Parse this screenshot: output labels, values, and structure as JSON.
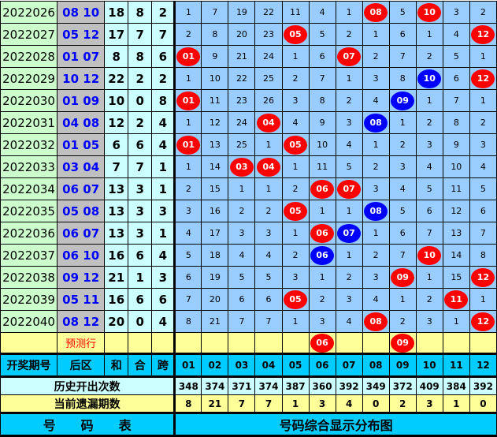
{
  "colors": {
    "red_ball": "#ff0000",
    "blue_ball": "#0000ff",
    "grid": "#99ccff",
    "header": "#00ccff"
  },
  "rows": [
    {
      "period": "2022026",
      "back": "08  10",
      "sum": "18",
      "he": "8",
      "span": "2",
      "cells": [
        "1",
        "7",
        "19",
        "22",
        "11",
        "4",
        "1",
        {
          "n": "08",
          "c": "red"
        },
        "5",
        {
          "n": "10",
          "c": "red"
        },
        "3",
        "2"
      ]
    },
    {
      "period": "2022027",
      "back": "05  12",
      "sum": "17",
      "he": "7",
      "span": "7",
      "cells": [
        "2",
        "8",
        "20",
        "23",
        {
          "n": "05",
          "c": "red"
        },
        "5",
        "2",
        "1",
        "6",
        "1",
        "4",
        {
          "n": "12",
          "c": "red"
        }
      ]
    },
    {
      "period": "2022028",
      "back": "01  07",
      "sum": "8",
      "he": "8",
      "span": "6",
      "cells": [
        {
          "n": "01",
          "c": "red"
        },
        "9",
        "21",
        "24",
        "1",
        "6",
        {
          "n": "07",
          "c": "red"
        },
        "2",
        "7",
        "2",
        "5",
        "1"
      ]
    },
    {
      "period": "2022029",
      "back": "10  12",
      "sum": "22",
      "he": "2",
      "span": "2",
      "cells": [
        "1",
        "10",
        "22",
        "25",
        "2",
        "7",
        "1",
        "3",
        "8",
        {
          "n": "10",
          "c": "blue"
        },
        "6",
        {
          "n": "12",
          "c": "red"
        }
      ]
    },
    {
      "period": "2022030",
      "back": "01  09",
      "sum": "10",
      "he": "0",
      "span": "8",
      "cells": [
        {
          "n": "01",
          "c": "red"
        },
        "11",
        "23",
        "26",
        "3",
        "8",
        "2",
        "4",
        {
          "n": "09",
          "c": "blue"
        },
        "1",
        "7",
        "1"
      ]
    },
    {
      "period": "2022031",
      "back": "04  08",
      "sum": "12",
      "he": "2",
      "span": "4",
      "cells": [
        "1",
        "12",
        "24",
        {
          "n": "04",
          "c": "red"
        },
        "4",
        "9",
        "3",
        {
          "n": "08",
          "c": "blue"
        },
        "1",
        "2",
        "8",
        "2"
      ]
    },
    {
      "period": "2022032",
      "back": "01  05",
      "sum": "6",
      "he": "6",
      "span": "4",
      "cells": [
        {
          "n": "01",
          "c": "red"
        },
        "13",
        "25",
        "1",
        {
          "n": "05",
          "c": "red"
        },
        "10",
        "4",
        "1",
        "2",
        "3",
        "9",
        "3"
      ]
    },
    {
      "period": "2022033",
      "back": "03  04",
      "sum": "7",
      "he": "7",
      "span": "1",
      "cells": [
        "1",
        "14",
        {
          "n": "03",
          "c": "red"
        },
        {
          "n": "04",
          "c": "red"
        },
        "1",
        "11",
        "5",
        "2",
        "3",
        "4",
        "10",
        "4"
      ]
    },
    {
      "period": "2022034",
      "back": "06  07",
      "sum": "13",
      "he": "3",
      "span": "1",
      "cells": [
        "2",
        "15",
        "1",
        "1",
        "2",
        {
          "n": "06",
          "c": "red"
        },
        {
          "n": "07",
          "c": "red"
        },
        "3",
        "4",
        "5",
        "11",
        "5"
      ]
    },
    {
      "period": "2022035",
      "back": "05  08",
      "sum": "13",
      "he": "3",
      "span": "3",
      "cells": [
        "3",
        "16",
        "2",
        "2",
        {
          "n": "05",
          "c": "red"
        },
        "1",
        "1",
        {
          "n": "08",
          "c": "blue"
        },
        "5",
        "6",
        "12",
        "6"
      ]
    },
    {
      "period": "2022036",
      "back": "06  07",
      "sum": "13",
      "he": "3",
      "span": "1",
      "cells": [
        "4",
        "17",
        "3",
        "3",
        "1",
        {
          "n": "06",
          "c": "red"
        },
        {
          "n": "07",
          "c": "blue"
        },
        "1",
        "6",
        "7",
        "13",
        "7"
      ]
    },
    {
      "period": "2022037",
      "back": "06  10",
      "sum": "16",
      "he": "6",
      "span": "4",
      "cells": [
        "5",
        "18",
        "4",
        "4",
        "2",
        {
          "n": "06",
          "c": "blue"
        },
        "1",
        "2",
        "7",
        {
          "n": "10",
          "c": "red"
        },
        "14",
        "8"
      ]
    },
    {
      "period": "2022038",
      "back": "09  12",
      "sum": "21",
      "he": "1",
      "span": "3",
      "cells": [
        "6",
        "19",
        "5",
        "5",
        "3",
        "1",
        "2",
        "3",
        {
          "n": "09",
          "c": "red"
        },
        "1",
        "15",
        {
          "n": "12",
          "c": "red"
        }
      ]
    },
    {
      "period": "2022039",
      "back": "05  11",
      "sum": "16",
      "he": "6",
      "span": "6",
      "cells": [
        "7",
        "20",
        "6",
        "6",
        {
          "n": "05",
          "c": "red"
        },
        "2",
        "3",
        "4",
        "1",
        "2",
        {
          "n": "11",
          "c": "red"
        },
        "1"
      ]
    },
    {
      "period": "2022040",
      "back": "08  12",
      "sum": "20",
      "he": "0",
      "span": "4",
      "cells": [
        "8",
        "21",
        "7",
        "7",
        "1",
        "3",
        "4",
        {
          "n": "08",
          "c": "red"
        },
        "2",
        "3",
        "1",
        {
          "n": "12",
          "c": "red"
        }
      ]
    }
  ],
  "prediction": {
    "label": "预测行",
    "cells": [
      "",
      "",
      "",
      "",
      "",
      {
        "n": "06",
        "c": "red"
      },
      "",
      "",
      {
        "n": "09",
        "c": "red"
      },
      "",
      "",
      ""
    ]
  },
  "header": {
    "period": "开奖期号",
    "back": "后区",
    "sum": "和",
    "he": "合",
    "span": "跨",
    "numbers": [
      "01",
      "02",
      "03",
      "04",
      "05",
      "06",
      "07",
      "08",
      "09",
      "10",
      "11",
      "12"
    ]
  },
  "history": {
    "label": "历史开出次数",
    "values": [
      "348",
      "374",
      "371",
      "374",
      "387",
      "360",
      "392",
      "349",
      "372",
      "409",
      "384",
      "392"
    ]
  },
  "current": {
    "label": "当前遗漏期数",
    "values": [
      "8",
      "21",
      "7",
      "7",
      "1",
      "3",
      "4",
      "0",
      "2",
      "3",
      "1",
      "0"
    ]
  },
  "footer": {
    "left": "号　　码　　表",
    "right": "号码综合显示分布图"
  }
}
